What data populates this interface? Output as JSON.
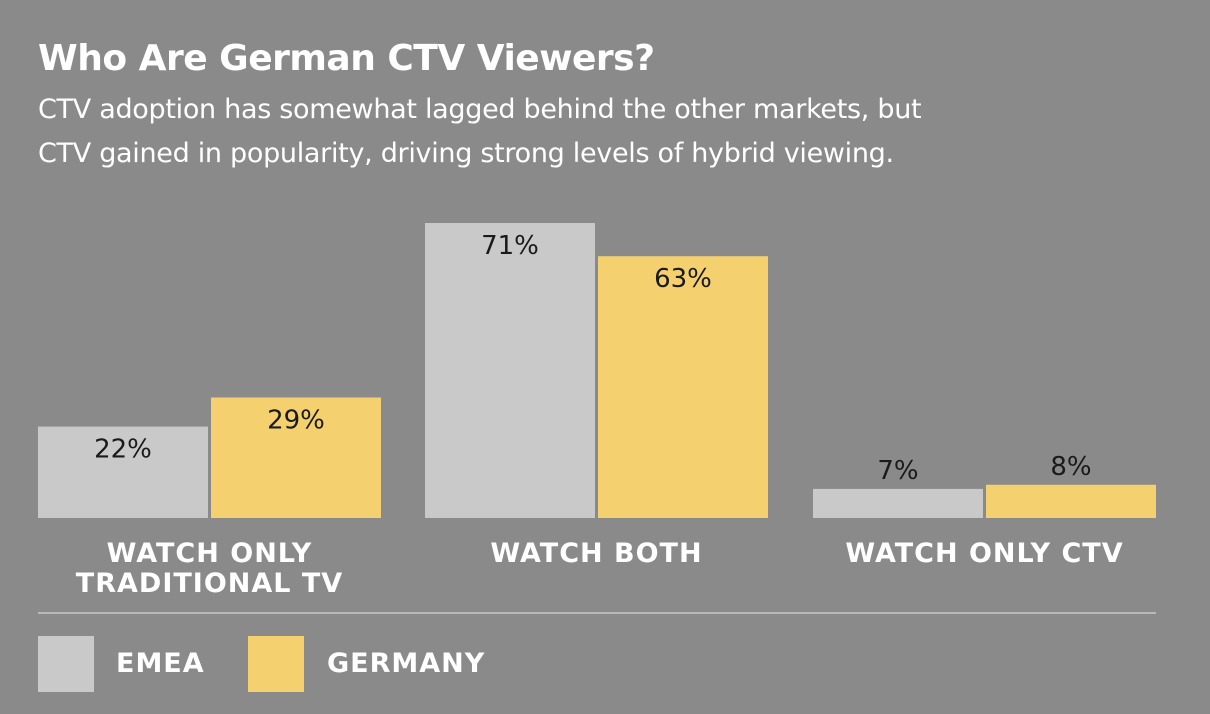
{
  "chart_data": {
    "type": "bar",
    "title": "Who Are German CTV Viewers?",
    "subtitle_lines": [
      "CTV adoption has somewhat lagged behind the other markets, but",
      "CTV gained in popularity, driving strong levels of hybrid viewing."
    ],
    "categories": [
      "WATCH ONLY\nTRADITIONAL TV",
      "WATCH BOTH",
      "WATCH ONLY CTV"
    ],
    "series": [
      {
        "name": "EMEA",
        "values": [
          22,
          71,
          7
        ],
        "labels": [
          "22%",
          "71%",
          "7%"
        ],
        "color": "#c9c9c9"
      },
      {
        "name": "GERMANY",
        "values": [
          29,
          63,
          8
        ],
        "labels": [
          "29%",
          "63%",
          "8%"
        ],
        "color": "#f5d06e"
      }
    ],
    "ylim": [
      0,
      71
    ],
    "grid": false,
    "legend_position": "bottom-left"
  },
  "colors": {
    "background": "#8a8a8a",
    "emea": "#c9c9c9",
    "germany": "#f5d06e",
    "text": "#ffffff",
    "value_label": "#1a1a1a"
  }
}
